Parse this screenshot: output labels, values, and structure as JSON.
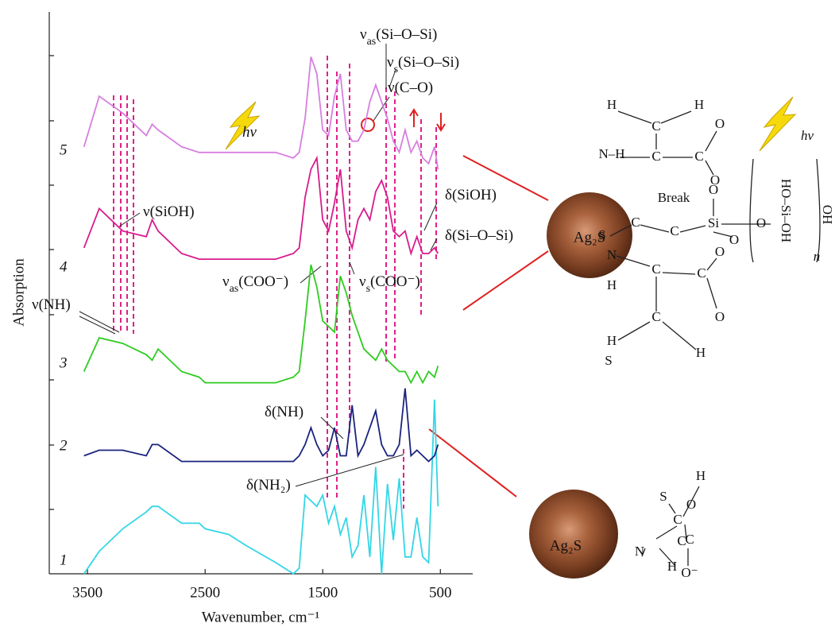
{
  "chart_data": {
    "type": "line",
    "x_label": "Wavenumber, cm⁻¹",
    "y_label": "Absorption",
    "x": [
      3530,
      3400,
      3200,
      3000,
      2950,
      2900,
      2700,
      2550,
      2500,
      2300,
      2150,
      1900,
      1750,
      1700,
      1650,
      1600,
      1550,
      1500,
      1450,
      1400,
      1350,
      1300,
      1250,
      1200,
      1150,
      1100,
      1050,
      1000,
      950,
      900,
      850,
      800,
      750,
      700,
      650,
      600,
      550,
      520
    ],
    "series": [
      {
        "name": "1",
        "color": "#33d6e6",
        "values": [
          0.0,
          0.4,
          0.8,
          1.1,
          1.2,
          1.2,
          0.9,
          0.9,
          0.8,
          0.7,
          0.5,
          0.2,
          0.0,
          0.1,
          1.4,
          1.3,
          1.2,
          1.4,
          0.9,
          1.2,
          0.7,
          1.0,
          0.3,
          0.5,
          1.4,
          0.3,
          1.9,
          0.0,
          1.6,
          0.6,
          1.7,
          0.3,
          0.3,
          1.0,
          0.3,
          0.2,
          3.1,
          1.2
        ]
      },
      {
        "name": "2",
        "color": "#1a237e",
        "values": [
          2.1,
          2.2,
          2.2,
          2.1,
          2.3,
          2.3,
          2.0,
          2.0,
          2.0,
          2.0,
          2.0,
          2.0,
          2.0,
          2.1,
          2.3,
          2.6,
          2.3,
          2.1,
          2.2,
          2.6,
          2.1,
          2.1,
          3.0,
          2.1,
          2.3,
          2.6,
          2.9,
          2.3,
          2.1,
          2.1,
          2.3,
          3.3,
          2.1,
          2.2,
          2.1,
          2.0,
          2.1,
          2.3
        ]
      },
      {
        "name": "3",
        "color": "#2ecc20",
        "values": [
          3.6,
          4.2,
          4.1,
          3.9,
          3.8,
          4.0,
          3.6,
          3.5,
          3.4,
          3.4,
          3.4,
          3.4,
          3.5,
          3.6,
          4.5,
          5.5,
          5.1,
          4.5,
          4.4,
          4.3,
          5.3,
          5.0,
          4.6,
          4.3,
          4.0,
          3.9,
          3.8,
          4.0,
          3.8,
          3.7,
          3.6,
          3.6,
          3.4,
          3.6,
          3.4,
          3.6,
          3.5,
          3.7
        ]
      },
      {
        "name": "4",
        "color": "#d81b8c",
        "values": [
          5.8,
          6.5,
          6.1,
          6.0,
          6.3,
          6.1,
          5.7,
          5.6,
          5.6,
          5.6,
          5.6,
          5.6,
          5.7,
          5.8,
          6.7,
          7.2,
          7.4,
          6.3,
          6.1,
          6.6,
          7.2,
          6.1,
          5.8,
          6.3,
          6.5,
          6.3,
          6.8,
          7.0,
          6.7,
          6.1,
          6.0,
          6.1,
          5.7,
          6.0,
          5.7,
          5.7,
          5.8,
          5.7
        ]
      },
      {
        "name": "5",
        "color": "#d77ee0",
        "values": [
          7.6,
          8.5,
          8.2,
          7.8,
          8.0,
          7.9,
          7.6,
          7.5,
          7.5,
          7.5,
          7.5,
          7.5,
          7.4,
          7.5,
          8.1,
          9.2,
          8.9,
          7.9,
          7.8,
          8.5,
          8.9,
          7.9,
          7.7,
          7.7,
          7.9,
          8.4,
          8.7,
          8.4,
          8.1,
          7.7,
          7.5,
          7.9,
          7.5,
          7.7,
          7.4,
          7.3,
          7.6,
          7.2
        ]
      }
    ],
    "xlim": [
      3825,
      225
    ],
    "xticks": [
      3500,
      2500,
      1500,
      500
    ],
    "ylim": [
      0,
      10
    ],
    "annotations": [
      [
        "ν",
        "as",
        "(Si–O–Si)"
      ],
      [
        "ν",
        "s",
        "(Si–O–Si)"
      ],
      [
        "ν(C–O)"
      ],
      [
        "hν"
      ],
      [
        "ν(SiOH)"
      ],
      [
        "δ(SiOH)"
      ],
      [
        "δ(Si–O–Si)"
      ],
      [
        "ν",
        "as",
        "(COO⁻)"
      ],
      [
        "ν",
        "s",
        "(COO⁻)"
      ],
      [
        "ν(NH)"
      ],
      [
        "δ(NH)"
      ],
      [
        "δ(NH₂)"
      ]
    ]
  },
  "structures": [
    {
      "particle": "Ag₂S",
      "labels": [
        "H",
        "H",
        "C",
        "N–H",
        "C",
        "C",
        "O",
        "O",
        "S",
        "C",
        "C",
        "Si",
        "O",
        "Break",
        "O",
        "HO–Si–OH",
        "O",
        "OH",
        "n",
        "N",
        "H",
        "C",
        "C",
        "O",
        "O",
        "C",
        "H",
        "H",
        "S",
        "hν"
      ]
    },
    {
      "particle": "Ag₂S",
      "labels": [
        "S",
        "H",
        "C",
        "N",
        "C",
        "H",
        "C",
        "O",
        "O⁻"
      ]
    }
  ]
}
